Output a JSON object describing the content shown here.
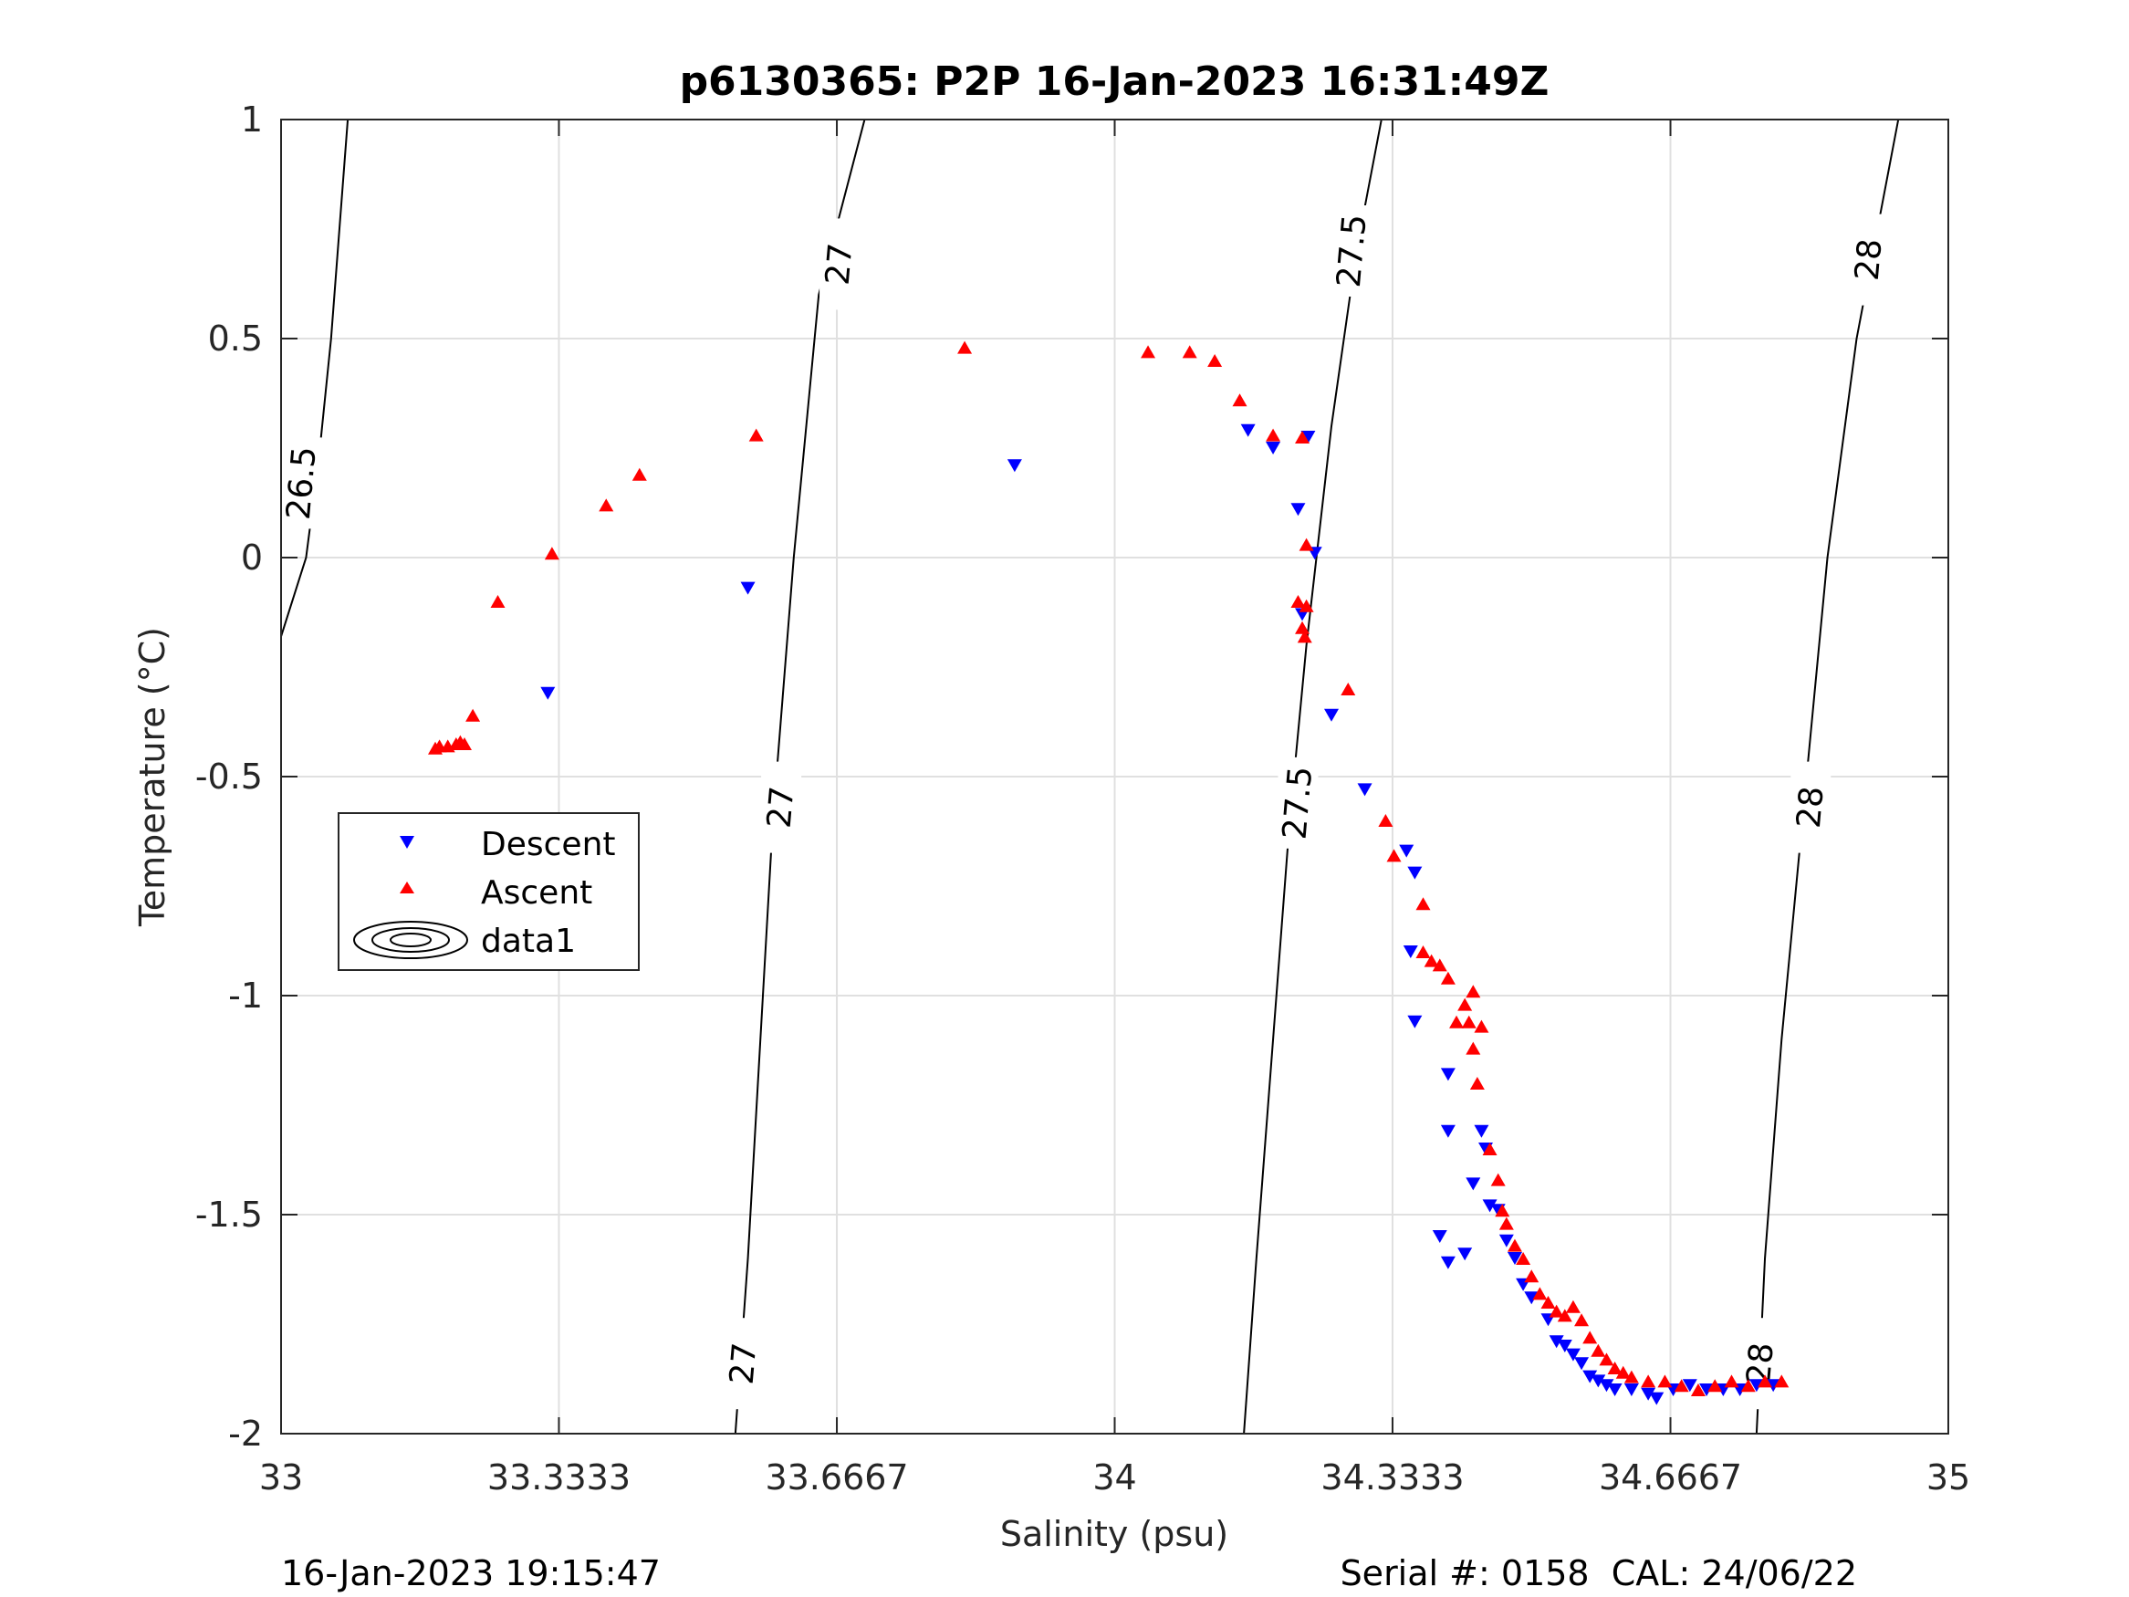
{
  "chart_data": {
    "type": "scatter",
    "title": "p6130365: P2P 16-Jan-2023 16:31:49Z",
    "xlabel": "Salinity (psu)",
    "ylabel": "Temperature (°C)",
    "xlim": [
      33,
      35
    ],
    "ylim": [
      -2,
      1
    ],
    "xticks": [
      33,
      33.3333,
      33.6667,
      34,
      34.3333,
      34.6667,
      35
    ],
    "xtick_labels": [
      "33",
      "33.3333",
      "33.6667",
      "34",
      "34.3333",
      "34.6667",
      "35"
    ],
    "yticks": [
      -2,
      -1.5,
      -1,
      -0.5,
      0,
      0.5,
      1
    ],
    "ytick_labels": [
      "-2",
      "-1.5",
      "-1",
      "-0.5",
      "0",
      "0.5",
      "1"
    ],
    "grid": true,
    "legend_position": "middle-left",
    "legend": [
      "Descent",
      "Ascent",
      "data1"
    ],
    "colors": {
      "descent": "#0000ff",
      "ascent": "#ff0000",
      "contour": "#000000",
      "grid": "#e0e0e0"
    },
    "series": [
      {
        "name": "Descent",
        "marker": "triangle-down",
        "points": [
          [
            33.32,
            -0.31
          ],
          [
            33.56,
            -0.07
          ],
          [
            33.88,
            0.21
          ],
          [
            34.16,
            0.29
          ],
          [
            34.19,
            0.25
          ],
          [
            34.22,
            0.11
          ],
          [
            34.225,
            -0.13
          ],
          [
            34.24,
            0.01
          ],
          [
            34.232,
            0.275
          ],
          [
            34.26,
            -0.36
          ],
          [
            34.3,
            -0.53
          ],
          [
            34.35,
            -0.67
          ],
          [
            34.36,
            -0.72
          ],
          [
            34.355,
            -0.9
          ],
          [
            34.36,
            -1.06
          ],
          [
            34.39,
            -1.55
          ],
          [
            34.4,
            -1.61
          ],
          [
            34.4,
            -1.18
          ],
          [
            34.4,
            -1.31
          ],
          [
            34.42,
            -1.59
          ],
          [
            34.43,
            -1.43
          ],
          [
            34.44,
            -1.31
          ],
          [
            34.445,
            -1.35
          ],
          [
            34.45,
            -1.48
          ],
          [
            34.46,
            -1.49
          ],
          [
            34.47,
            -1.56
          ],
          [
            34.48,
            -1.6
          ],
          [
            34.49,
            -1.66
          ],
          [
            34.5,
            -1.69
          ],
          [
            34.52,
            -1.74
          ],
          [
            34.53,
            -1.79
          ],
          [
            34.54,
            -1.8
          ],
          [
            34.55,
            -1.82
          ],
          [
            34.56,
            -1.84
          ],
          [
            34.57,
            -1.87
          ],
          [
            34.58,
            -1.88
          ],
          [
            34.59,
            -1.89
          ],
          [
            34.6,
            -1.9
          ],
          [
            34.62,
            -1.9
          ],
          [
            34.64,
            -1.91
          ],
          [
            34.65,
            -1.92
          ],
          [
            34.67,
            -1.9
          ],
          [
            34.69,
            -1.89
          ],
          [
            34.71,
            -1.9
          ],
          [
            34.73,
            -1.9
          ],
          [
            34.75,
            -1.9
          ],
          [
            34.77,
            -1.89
          ],
          [
            34.79,
            -1.89
          ]
        ]
      },
      {
        "name": "Ascent",
        "marker": "triangle-up",
        "points": [
          [
            33.185,
            -0.435
          ],
          [
            33.19,
            -0.43
          ],
          [
            33.2,
            -0.43
          ],
          [
            33.21,
            -0.425
          ],
          [
            33.215,
            -0.42
          ],
          [
            33.22,
            -0.425
          ],
          [
            33.23,
            -0.36
          ],
          [
            33.26,
            -0.1
          ],
          [
            33.325,
            0.01
          ],
          [
            33.39,
            0.12
          ],
          [
            33.43,
            0.19
          ],
          [
            33.57,
            0.28
          ],
          [
            33.82,
            0.48
          ],
          [
            34.04,
            0.47
          ],
          [
            34.09,
            0.47
          ],
          [
            34.12,
            0.45
          ],
          [
            34.15,
            0.36
          ],
          [
            34.19,
            0.28
          ],
          [
            34.225,
            0.275
          ],
          [
            34.23,
            0.03
          ],
          [
            34.22,
            -0.1
          ],
          [
            34.23,
            -0.11
          ],
          [
            34.225,
            -0.16
          ],
          [
            34.228,
            -0.18
          ],
          [
            34.28,
            -0.3
          ],
          [
            34.325,
            -0.6
          ],
          [
            34.335,
            -0.68
          ],
          [
            34.37,
            -0.79
          ],
          [
            34.37,
            -0.9
          ],
          [
            34.38,
            -0.92
          ],
          [
            34.39,
            -0.93
          ],
          [
            34.4,
            -0.96
          ],
          [
            34.41,
            -1.06
          ],
          [
            34.42,
            -1.02
          ],
          [
            34.43,
            -0.99
          ],
          [
            34.425,
            -1.06
          ],
          [
            34.43,
            -1.12
          ],
          [
            34.435,
            -1.2
          ],
          [
            34.44,
            -1.07
          ],
          [
            34.45,
            -1.35
          ],
          [
            34.46,
            -1.42
          ],
          [
            34.465,
            -1.49
          ],
          [
            34.47,
            -1.52
          ],
          [
            34.48,
            -1.57
          ],
          [
            34.49,
            -1.6
          ],
          [
            34.5,
            -1.64
          ],
          [
            34.51,
            -1.68
          ],
          [
            34.52,
            -1.7
          ],
          [
            34.53,
            -1.72
          ],
          [
            34.54,
            -1.73
          ],
          [
            34.55,
            -1.71
          ],
          [
            34.56,
            -1.74
          ],
          [
            34.57,
            -1.78
          ],
          [
            34.58,
            -1.81
          ],
          [
            34.59,
            -1.83
          ],
          [
            34.6,
            -1.85
          ],
          [
            34.61,
            -1.86
          ],
          [
            34.62,
            -1.87
          ],
          [
            34.64,
            -1.88
          ],
          [
            34.66,
            -1.88
          ],
          [
            34.68,
            -1.89
          ],
          [
            34.7,
            -1.9
          ],
          [
            34.72,
            -1.89
          ],
          [
            34.74,
            -1.88
          ],
          [
            34.76,
            -1.89
          ],
          [
            34.78,
            -1.88
          ],
          [
            34.8,
            -1.88
          ]
        ]
      }
    ],
    "contours": [
      {
        "level": "26.5",
        "points": [
          [
            33.0,
            -0.18
          ],
          [
            33.03,
            0.0
          ],
          [
            33.045,
            0.22
          ],
          [
            33.06,
            0.5
          ],
          [
            33.08,
            1.0
          ]
        ],
        "labels": [
          [
            33.025,
            0.17
          ]
        ]
      },
      {
        "level": "27",
        "points": [
          [
            33.545,
            -2.0
          ],
          [
            33.56,
            -1.6
          ],
          [
            33.575,
            -1.1
          ],
          [
            33.59,
            -0.6
          ],
          [
            33.615,
            0.0
          ],
          [
            33.645,
            0.6
          ],
          [
            33.7,
            1.0
          ]
        ],
        "labels": [
          [
            33.555,
            -1.84
          ],
          [
            33.6,
            -0.57
          ],
          [
            33.67,
            0.67
          ]
        ]
      },
      {
        "level": "27.5",
        "points": [
          [
            34.155,
            -2.0
          ],
          [
            34.17,
            -1.6
          ],
          [
            34.19,
            -1.1
          ],
          [
            34.21,
            -0.6
          ],
          [
            34.23,
            -0.2
          ],
          [
            34.26,
            0.3
          ],
          [
            34.29,
            0.7
          ],
          [
            34.32,
            1.0
          ]
        ],
        "labels": [
          [
            34.22,
            -0.56
          ],
          [
            34.285,
            0.7
          ]
        ]
      },
      {
        "level": "28",
        "points": [
          [
            34.77,
            -2.0
          ],
          [
            34.78,
            -1.6
          ],
          [
            34.8,
            -1.1
          ],
          [
            34.825,
            -0.6
          ],
          [
            34.855,
            0.0
          ],
          [
            34.89,
            0.5
          ],
          [
            34.94,
            1.0
          ]
        ],
        "labels": [
          [
            34.775,
            -1.84
          ],
          [
            34.835,
            -0.57
          ],
          [
            34.905,
            0.68
          ]
        ]
      }
    ]
  },
  "footer": {
    "left": "16-Jan-2023 19:15:47",
    "right": "Serial #: 0158  CAL: 24/06/22"
  }
}
